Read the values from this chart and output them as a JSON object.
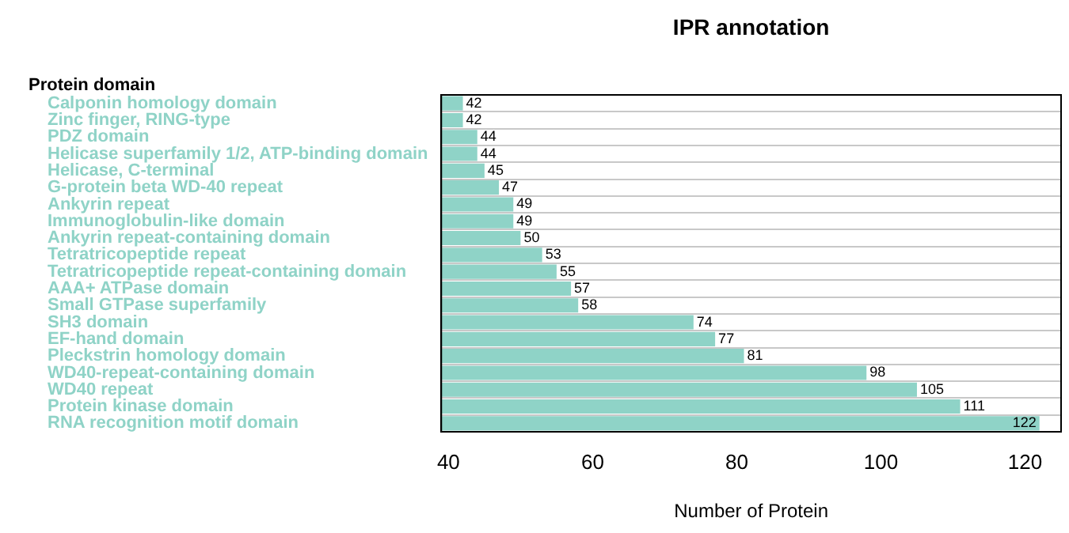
{
  "chart_data": {
    "type": "bar",
    "orientation": "horizontal",
    "title": "IPR annotation",
    "xlabel": "Number of Protein",
    "ylabel": "Protein domain",
    "categories": [
      "Calponin homology domain",
      "Zinc finger, RING-type",
      "PDZ domain",
      "Helicase superfamily 1/2, ATP-binding domain",
      "Helicase, C-terminal",
      "G-protein beta WD-40 repeat",
      "Ankyrin repeat",
      "Immunoglobulin-like domain",
      "Ankyrin repeat-containing domain",
      "Tetratricopeptide repeat",
      "Tetratricopeptide repeat-containing domain",
      "AAA+ ATPase domain",
      "Small GTPase superfamily",
      "SH3 domain",
      "EF-hand domain",
      "Pleckstrin homology domain",
      "WD40-repeat-containing domain",
      "WD40 repeat",
      "Protein kinase domain",
      "RNA recognition motif domain"
    ],
    "values": [
      42,
      42,
      44,
      44,
      45,
      47,
      49,
      49,
      50,
      53,
      55,
      57,
      58,
      74,
      77,
      81,
      98,
      105,
      111,
      122
    ],
    "color": "#8fd3c7",
    "xlim": [
      39,
      125
    ],
    "xticks": [
      40,
      60,
      80,
      100,
      120
    ],
    "grid": "y",
    "data_labels": true,
    "legend": false
  }
}
